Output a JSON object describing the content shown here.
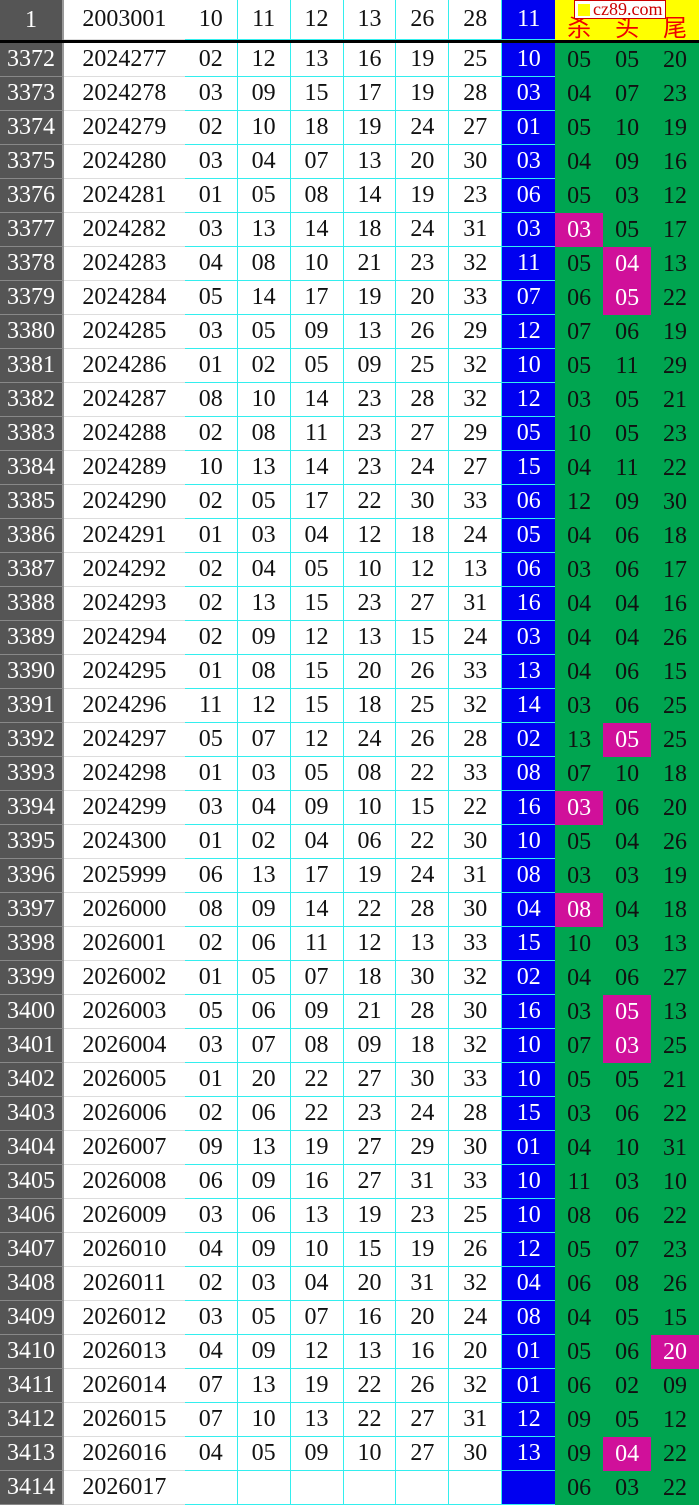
{
  "header": {
    "idx": "1",
    "issue": "2003001",
    "nums": [
      "10",
      "11",
      "12",
      "13",
      "26",
      "28"
    ],
    "blue": "11",
    "tags": [
      "杀",
      "头",
      "尾"
    ],
    "logo": "cz89.com"
  },
  "colors": {
    "blue": "#0000f0",
    "green": "#00a550",
    "highlight": "#d0109a",
    "header_yellow": "#ffff00"
  },
  "rows": [
    {
      "idx": "3372",
      "issue": "2024277",
      "nums": [
        "02",
        "12",
        "13",
        "16",
        "19",
        "25"
      ],
      "blue": "10",
      "g": [
        "05",
        "05",
        "20"
      ],
      "hl": -1
    },
    {
      "idx": "3373",
      "issue": "2024278",
      "nums": [
        "03",
        "09",
        "15",
        "17",
        "19",
        "28"
      ],
      "blue": "03",
      "g": [
        "04",
        "07",
        "23"
      ],
      "hl": -1
    },
    {
      "idx": "3374",
      "issue": "2024279",
      "nums": [
        "02",
        "10",
        "18",
        "19",
        "24",
        "27"
      ],
      "blue": "01",
      "g": [
        "05",
        "10",
        "19"
      ],
      "hl": -1
    },
    {
      "idx": "3375",
      "issue": "2024280",
      "nums": [
        "03",
        "04",
        "07",
        "13",
        "20",
        "30"
      ],
      "blue": "03",
      "g": [
        "04",
        "09",
        "16"
      ],
      "hl": -1
    },
    {
      "idx": "3376",
      "issue": "2024281",
      "nums": [
        "01",
        "05",
        "08",
        "14",
        "19",
        "23"
      ],
      "blue": "06",
      "g": [
        "05",
        "03",
        "12"
      ],
      "hl": -1
    },
    {
      "idx": "3377",
      "issue": "2024282",
      "nums": [
        "03",
        "13",
        "14",
        "18",
        "24",
        "31"
      ],
      "blue": "03",
      "g": [
        "03",
        "05",
        "17"
      ],
      "hl": 0
    },
    {
      "idx": "3378",
      "issue": "2024283",
      "nums": [
        "04",
        "08",
        "10",
        "21",
        "23",
        "32"
      ],
      "blue": "11",
      "g": [
        "05",
        "04",
        "13"
      ],
      "hl": 1
    },
    {
      "idx": "3379",
      "issue": "2024284",
      "nums": [
        "05",
        "14",
        "17",
        "19",
        "20",
        "33"
      ],
      "blue": "07",
      "g": [
        "06",
        "05",
        "22"
      ],
      "hl": 1
    },
    {
      "idx": "3380",
      "issue": "2024285",
      "nums": [
        "03",
        "05",
        "09",
        "13",
        "26",
        "29"
      ],
      "blue": "12",
      "g": [
        "07",
        "06",
        "19"
      ],
      "hl": -1
    },
    {
      "idx": "3381",
      "issue": "2024286",
      "nums": [
        "01",
        "02",
        "05",
        "09",
        "25",
        "32"
      ],
      "blue": "10",
      "g": [
        "05",
        "11",
        "29"
      ],
      "hl": -1
    },
    {
      "idx": "3382",
      "issue": "2024287",
      "nums": [
        "08",
        "10",
        "14",
        "23",
        "28",
        "32"
      ],
      "blue": "12",
      "g": [
        "03",
        "05",
        "21"
      ],
      "hl": -1
    },
    {
      "idx": "3383",
      "issue": "2024288",
      "nums": [
        "02",
        "08",
        "11",
        "23",
        "27",
        "29"
      ],
      "blue": "05",
      "g": [
        "10",
        "05",
        "23"
      ],
      "hl": -1
    },
    {
      "idx": "3384",
      "issue": "2024289",
      "nums": [
        "10",
        "13",
        "14",
        "23",
        "24",
        "27"
      ],
      "blue": "15",
      "g": [
        "04",
        "11",
        "22"
      ],
      "hl": -1
    },
    {
      "idx": "3385",
      "issue": "2024290",
      "nums": [
        "02",
        "05",
        "17",
        "22",
        "30",
        "33"
      ],
      "blue": "06",
      "g": [
        "12",
        "09",
        "30"
      ],
      "hl": -1
    },
    {
      "idx": "3386",
      "issue": "2024291",
      "nums": [
        "01",
        "03",
        "04",
        "12",
        "18",
        "24"
      ],
      "blue": "05",
      "g": [
        "04",
        "06",
        "18"
      ],
      "hl": -1
    },
    {
      "idx": "3387",
      "issue": "2024292",
      "nums": [
        "02",
        "04",
        "05",
        "10",
        "12",
        "13"
      ],
      "blue": "06",
      "g": [
        "03",
        "06",
        "17"
      ],
      "hl": -1
    },
    {
      "idx": "3388",
      "issue": "2024293",
      "nums": [
        "02",
        "13",
        "15",
        "23",
        "27",
        "31"
      ],
      "blue": "16",
      "g": [
        "04",
        "04",
        "16"
      ],
      "hl": -1
    },
    {
      "idx": "3389",
      "issue": "2024294",
      "nums": [
        "02",
        "09",
        "12",
        "13",
        "15",
        "24"
      ],
      "blue": "03",
      "g": [
        "04",
        "04",
        "26"
      ],
      "hl": -1
    },
    {
      "idx": "3390",
      "issue": "2024295",
      "nums": [
        "01",
        "08",
        "15",
        "20",
        "26",
        "33"
      ],
      "blue": "13",
      "g": [
        "04",
        "06",
        "15"
      ],
      "hl": -1
    },
    {
      "idx": "3391",
      "issue": "2024296",
      "nums": [
        "11",
        "12",
        "15",
        "18",
        "25",
        "32"
      ],
      "blue": "14",
      "g": [
        "03",
        "06",
        "25"
      ],
      "hl": -1
    },
    {
      "idx": "3392",
      "issue": "2024297",
      "nums": [
        "05",
        "07",
        "12",
        "24",
        "26",
        "28"
      ],
      "blue": "02",
      "g": [
        "13",
        "05",
        "25"
      ],
      "hl": 1
    },
    {
      "idx": "3393",
      "issue": "2024298",
      "nums": [
        "01",
        "03",
        "05",
        "08",
        "22",
        "33"
      ],
      "blue": "08",
      "g": [
        "07",
        "10",
        "18"
      ],
      "hl": -1
    },
    {
      "idx": "3394",
      "issue": "2024299",
      "nums": [
        "03",
        "04",
        "09",
        "10",
        "15",
        "22"
      ],
      "blue": "16",
      "g": [
        "03",
        "06",
        "20"
      ],
      "hl": 0
    },
    {
      "idx": "3395",
      "issue": "2024300",
      "nums": [
        "01",
        "02",
        "04",
        "06",
        "22",
        "30"
      ],
      "blue": "10",
      "g": [
        "05",
        "04",
        "26"
      ],
      "hl": -1
    },
    {
      "idx": "3396",
      "issue": "2025999",
      "nums": [
        "06",
        "13",
        "17",
        "19",
        "24",
        "31"
      ],
      "blue": "08",
      "g": [
        "03",
        "03",
        "19"
      ],
      "hl": -1
    },
    {
      "idx": "3397",
      "issue": "2026000",
      "nums": [
        "08",
        "09",
        "14",
        "22",
        "28",
        "30"
      ],
      "blue": "04",
      "g": [
        "08",
        "04",
        "18"
      ],
      "hl": 0
    },
    {
      "idx": "3398",
      "issue": "2026001",
      "nums": [
        "02",
        "06",
        "11",
        "12",
        "13",
        "33"
      ],
      "blue": "15",
      "g": [
        "10",
        "03",
        "13"
      ],
      "hl": -1
    },
    {
      "idx": "3399",
      "issue": "2026002",
      "nums": [
        "01",
        "05",
        "07",
        "18",
        "30",
        "32"
      ],
      "blue": "02",
      "g": [
        "04",
        "06",
        "27"
      ],
      "hl": -1
    },
    {
      "idx": "3400",
      "issue": "2026003",
      "nums": [
        "05",
        "06",
        "09",
        "21",
        "28",
        "30"
      ],
      "blue": "16",
      "g": [
        "03",
        "05",
        "13"
      ],
      "hl": 1
    },
    {
      "idx": "3401",
      "issue": "2026004",
      "nums": [
        "03",
        "07",
        "08",
        "09",
        "18",
        "32"
      ],
      "blue": "10",
      "g": [
        "07",
        "03",
        "25"
      ],
      "hl": 1
    },
    {
      "idx": "3402",
      "issue": "2026005",
      "nums": [
        "01",
        "20",
        "22",
        "27",
        "30",
        "33"
      ],
      "blue": "10",
      "g": [
        "05",
        "05",
        "21"
      ],
      "hl": -1
    },
    {
      "idx": "3403",
      "issue": "2026006",
      "nums": [
        "02",
        "06",
        "22",
        "23",
        "24",
        "28"
      ],
      "blue": "15",
      "g": [
        "03",
        "06",
        "22"
      ],
      "hl": -1
    },
    {
      "idx": "3404",
      "issue": "2026007",
      "nums": [
        "09",
        "13",
        "19",
        "27",
        "29",
        "30"
      ],
      "blue": "01",
      "g": [
        "04",
        "10",
        "31"
      ],
      "hl": -1
    },
    {
      "idx": "3405",
      "issue": "2026008",
      "nums": [
        "06",
        "09",
        "16",
        "27",
        "31",
        "33"
      ],
      "blue": "10",
      "g": [
        "11",
        "03",
        "10"
      ],
      "hl": -1
    },
    {
      "idx": "3406",
      "issue": "2026009",
      "nums": [
        "03",
        "06",
        "13",
        "19",
        "23",
        "25"
      ],
      "blue": "10",
      "g": [
        "08",
        "06",
        "22"
      ],
      "hl": -1
    },
    {
      "idx": "3407",
      "issue": "2026010",
      "nums": [
        "04",
        "09",
        "10",
        "15",
        "19",
        "26"
      ],
      "blue": "12",
      "g": [
        "05",
        "07",
        "23"
      ],
      "hl": -1
    },
    {
      "idx": "3408",
      "issue": "2026011",
      "nums": [
        "02",
        "03",
        "04",
        "20",
        "31",
        "32"
      ],
      "blue": "04",
      "g": [
        "06",
        "08",
        "26"
      ],
      "hl": -1
    },
    {
      "idx": "3409",
      "issue": "2026012",
      "nums": [
        "03",
        "05",
        "07",
        "16",
        "20",
        "24"
      ],
      "blue": "08",
      "g": [
        "04",
        "05",
        "15"
      ],
      "hl": -1
    },
    {
      "idx": "3410",
      "issue": "2026013",
      "nums": [
        "04",
        "09",
        "12",
        "13",
        "16",
        "20"
      ],
      "blue": "01",
      "g": [
        "05",
        "06",
        "20"
      ],
      "hl": 2
    },
    {
      "idx": "3411",
      "issue": "2026014",
      "nums": [
        "07",
        "13",
        "19",
        "22",
        "26",
        "32"
      ],
      "blue": "01",
      "g": [
        "06",
        "02",
        "09"
      ],
      "hl": -1
    },
    {
      "idx": "3412",
      "issue": "2026015",
      "nums": [
        "07",
        "10",
        "13",
        "22",
        "27",
        "31"
      ],
      "blue": "12",
      "g": [
        "09",
        "05",
        "12"
      ],
      "hl": -1
    },
    {
      "idx": "3413",
      "issue": "2026016",
      "nums": [
        "04",
        "05",
        "09",
        "10",
        "27",
        "30"
      ],
      "blue": "13",
      "g": [
        "09",
        "04",
        "22"
      ],
      "hl": 1
    },
    {
      "idx": "3414",
      "issue": "2026017",
      "nums": [
        "",
        "",
        "",
        "",
        "",
        ""
      ],
      "blue": "",
      "g": [
        "06",
        "03",
        "22"
      ],
      "hl": -1
    }
  ]
}
